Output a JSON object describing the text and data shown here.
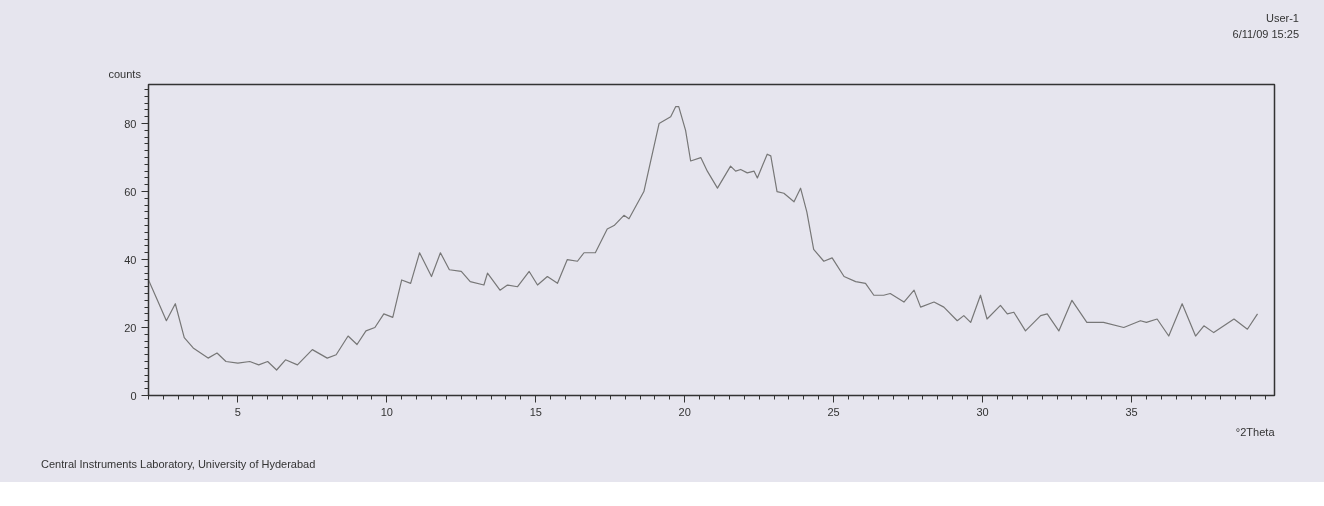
{
  "chart_data": {
    "type": "line",
    "xlabel": "°2Theta",
    "ylabel": "counts",
    "annotations": [
      "User-1",
      "6/11/09 15:25",
      "Central Instruments Laboratory, University of Hyderabad"
    ],
    "xlim": [
      2,
      39.8
    ],
    "ylim": [
      0,
      91.5
    ],
    "xticks": [
      5,
      10,
      15,
      20,
      25,
      30,
      35
    ],
    "yticks": [
      0,
      20,
      40,
      60,
      80
    ],
    "series": [
      {
        "color": "#777777",
        "x": [
          2.0,
          2.3,
          2.6,
          2.9,
          3.2,
          3.5,
          4.0,
          4.3,
          4.6,
          5.0,
          5.4,
          5.7,
          6.0,
          6.3,
          6.6,
          7.0,
          7.5,
          8.0,
          8.3,
          8.7,
          9.0,
          9.3,
          9.6,
          9.9,
          10.2,
          10.5,
          10.8,
          11.1,
          11.5,
          11.8,
          12.1,
          12.5,
          12.8,
          13.26,
          13.38,
          13.8,
          14.05,
          14.39,
          14.78,
          15.06,
          15.39,
          15.73,
          16.06,
          16.4,
          16.62,
          17.0,
          17.4,
          17.63,
          17.96,
          18.13,
          18.63,
          18.86,
          19.14,
          19.53,
          19.7,
          19.8,
          20.03,
          20.2,
          20.54,
          20.76,
          21.1,
          21.54,
          21.71,
          21.88,
          22.1,
          22.33,
          22.44,
          22.77,
          22.89,
          23.1,
          23.33,
          23.67,
          23.89,
          24.1,
          24.33,
          24.67,
          24.95,
          25.35,
          25.74,
          26.07,
          26.35,
          26.68,
          26.9,
          27.36,
          27.7,
          27.92,
          28.37,
          28.7,
          29.15,
          29.37,
          29.6,
          29.93,
          30.15,
          30.6,
          30.83,
          31.05,
          31.44,
          31.95,
          32.17,
          32.56,
          33.0,
          33.5,
          34.06,
          34.74,
          35.3,
          35.5,
          35.86,
          36.25,
          36.7,
          37.15,
          37.43,
          37.76,
          38.44,
          38.89,
          39.23
        ],
        "values": [
          34,
          28,
          22,
          27,
          17,
          14,
          11,
          12.5,
          10,
          9.5,
          10,
          9,
          10,
          7.5,
          10.5,
          9,
          13.5,
          11,
          12,
          17.5,
          15,
          19,
          20,
          24,
          23,
          34,
          33,
          42,
          35,
          42,
          37,
          36.5,
          33.5,
          32.5,
          36,
          31,
          32.5,
          32,
          36.5,
          32.5,
          35,
          33,
          40,
          39.5,
          42,
          42,
          49,
          50,
          53,
          52,
          60,
          69,
          80,
          82,
          85,
          85,
          78,
          69,
          70,
          66,
          61,
          67.5,
          66,
          66.5,
          65.5,
          66,
          64,
          71,
          70.5,
          60,
          59.5,
          57,
          61,
          54,
          43,
          39.5,
          40.5,
          35,
          33.5,
          33,
          29.5,
          29.5,
          30,
          27.5,
          31,
          26,
          27.5,
          26,
          22,
          23.5,
          21.5,
          29.5,
          22.5,
          26.5,
          24,
          24.5,
          19,
          23.5,
          24,
          19,
          28,
          21.5,
          21.5,
          20,
          22,
          21.5,
          22.5,
          17.5,
          27,
          17.5,
          20.5,
          18.5,
          22.5,
          19.5,
          24
        ]
      }
    ]
  }
}
